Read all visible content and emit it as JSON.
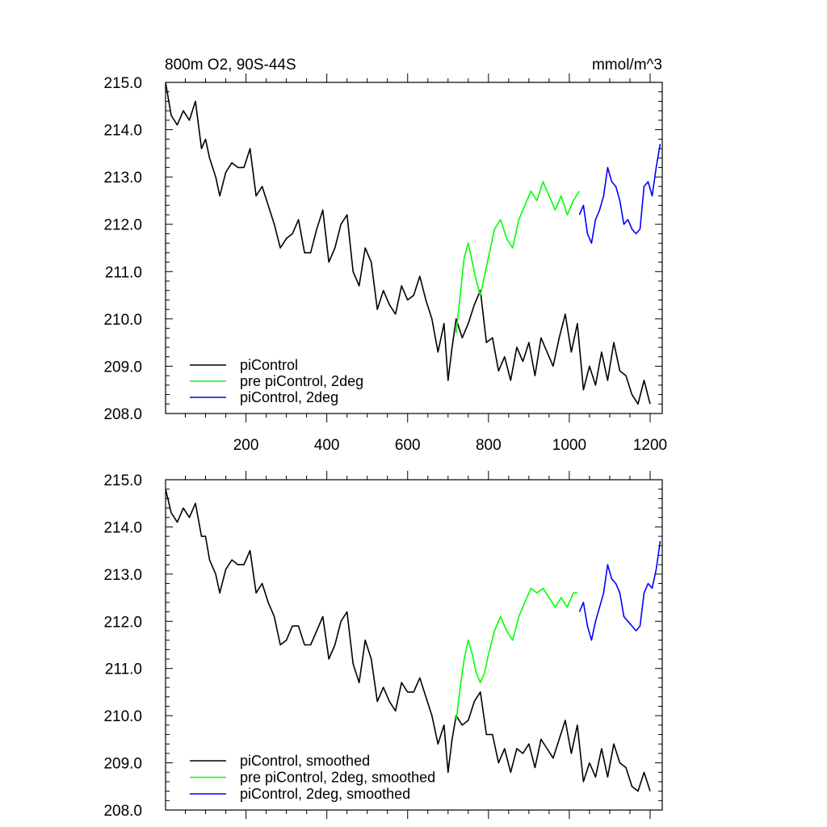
{
  "title_left": "800m O2, 90S-44S",
  "title_right": "mmol/m^3",
  "colors": {
    "black": "#000000",
    "green": "#00ff00",
    "blue": "#0000ff"
  },
  "chart_data": [
    {
      "type": "line",
      "title": "800m O2, 90S-44S",
      "units": "mmol/m^3",
      "xlim": [
        1,
        1230
      ],
      "ylim": [
        208,
        215
      ],
      "xticks": [
        200,
        400,
        600,
        800,
        1000,
        1200
      ],
      "xtick_labels": [
        "200",
        "400",
        "600",
        "800",
        "1000",
        "1200"
      ],
      "yticks": [
        208,
        209,
        210,
        211,
        212,
        213,
        214,
        215
      ],
      "ytick_labels": [
        "208.0",
        "209.0",
        "210.0",
        "211.0",
        "212.0",
        "213.0",
        "214.0",
        "215.0"
      ],
      "legend_position": "bottom-left",
      "series": [
        {
          "name": "piControl",
          "color": "#000000",
          "x": [
            1,
            15,
            30,
            45,
            60,
            75,
            90,
            100,
            110,
            125,
            135,
            150,
            165,
            180,
            195,
            210,
            225,
            240,
            255,
            270,
            285,
            300,
            315,
            330,
            345,
            360,
            375,
            390,
            405,
            420,
            435,
            450,
            465,
            480,
            495,
            510,
            525,
            540,
            555,
            570,
            585,
            600,
            615,
            630,
            645,
            660,
            675,
            690,
            700,
            710,
            720,
            735,
            750,
            765,
            780,
            795,
            810,
            825,
            840,
            855,
            870,
            885,
            900,
            915,
            930,
            945,
            960,
            975,
            990,
            1005,
            1020,
            1035,
            1050,
            1065,
            1080,
            1095,
            1110,
            1125,
            1140,
            1155,
            1170,
            1185,
            1200
          ],
          "y": [
            215.0,
            214.3,
            214.1,
            214.4,
            214.2,
            214.6,
            213.6,
            213.8,
            213.4,
            213.0,
            212.6,
            213.1,
            213.3,
            213.2,
            213.2,
            213.6,
            212.6,
            212.8,
            212.4,
            212.0,
            211.5,
            211.7,
            211.8,
            212.1,
            211.4,
            211.4,
            211.9,
            212.3,
            211.2,
            211.5,
            212.0,
            212.2,
            211.0,
            210.7,
            211.5,
            211.2,
            210.2,
            210.6,
            210.3,
            210.1,
            210.7,
            210.4,
            210.5,
            210.9,
            210.4,
            210.0,
            209.3,
            209.9,
            208.7,
            209.4,
            210.0,
            209.6,
            209.9,
            210.3,
            210.6,
            209.5,
            209.6,
            208.9,
            209.2,
            208.7,
            209.4,
            209.1,
            209.5,
            208.8,
            209.6,
            209.3,
            209.0,
            209.6,
            210.1,
            209.3,
            209.9,
            208.5,
            209.0,
            208.6,
            209.3,
            208.7,
            209.5,
            208.9,
            208.8,
            208.4,
            208.2,
            208.7,
            208.2
          ]
        },
        {
          "name": "pre piControl, 2deg",
          "color": "#00ff00",
          "x": [
            720,
            730,
            740,
            750,
            760,
            770,
            780,
            790,
            800,
            815,
            830,
            845,
            860,
            875,
            890,
            905,
            920,
            935,
            950,
            965,
            980,
            995,
            1010,
            1025
          ],
          "y": [
            209.7,
            210.5,
            211.3,
            211.6,
            211.2,
            210.8,
            210.5,
            210.9,
            211.3,
            211.9,
            212.1,
            211.7,
            211.5,
            212.1,
            212.4,
            212.7,
            212.5,
            212.9,
            212.6,
            212.3,
            212.6,
            212.2,
            212.5,
            212.7
          ]
        },
        {
          "name": "piControl, 2deg",
          "color": "#0000ff",
          "x": [
            1025,
            1035,
            1045,
            1055,
            1065,
            1075,
            1085,
            1095,
            1105,
            1115,
            1125,
            1135,
            1145,
            1155,
            1165,
            1175,
            1185,
            1195,
            1205,
            1215,
            1225
          ],
          "y": [
            212.2,
            212.4,
            211.8,
            211.6,
            212.1,
            212.3,
            212.6,
            213.2,
            212.9,
            212.8,
            212.5,
            212.0,
            212.1,
            211.9,
            211.8,
            211.9,
            212.8,
            212.9,
            212.6,
            213.2,
            213.7
          ]
        }
      ]
    },
    {
      "type": "line",
      "xlim": [
        1,
        1230
      ],
      "ylim": [
        208,
        215
      ],
      "xticks": [
        200,
        400,
        600,
        800,
        1000,
        1200
      ],
      "yticks": [
        208,
        209,
        210,
        211,
        212,
        213,
        214,
        215
      ],
      "ytick_labels": [
        "208.0",
        "209.0",
        "210.0",
        "211.0",
        "212.0",
        "213.0",
        "214.0",
        "215.0"
      ],
      "legend_position": "bottom-left",
      "series": [
        {
          "name": "piControl, smoothed",
          "color": "#000000",
          "x": [
            1,
            15,
            30,
            45,
            60,
            75,
            90,
            100,
            110,
            125,
            135,
            150,
            165,
            180,
            195,
            210,
            225,
            240,
            255,
            270,
            285,
            300,
            315,
            330,
            345,
            360,
            375,
            390,
            405,
            420,
            435,
            450,
            465,
            480,
            495,
            510,
            525,
            540,
            555,
            570,
            585,
            600,
            615,
            630,
            645,
            660,
            675,
            690,
            700,
            710,
            720,
            735,
            750,
            765,
            780,
            795,
            810,
            825,
            840,
            855,
            870,
            885,
            900,
            915,
            930,
            945,
            960,
            975,
            990,
            1005,
            1020,
            1035,
            1050,
            1065,
            1080,
            1095,
            1110,
            1125,
            1140,
            1155,
            1170,
            1185,
            1200
          ],
          "y": [
            214.8,
            214.3,
            214.1,
            214.4,
            214.2,
            214.5,
            213.8,
            213.8,
            213.3,
            213.0,
            212.6,
            213.1,
            213.3,
            213.2,
            213.2,
            213.5,
            212.6,
            212.8,
            212.4,
            212.1,
            211.5,
            211.6,
            211.9,
            211.9,
            211.5,
            211.5,
            211.8,
            212.1,
            211.2,
            211.5,
            212.0,
            212.2,
            211.1,
            210.7,
            211.6,
            211.2,
            210.3,
            210.6,
            210.3,
            210.1,
            210.7,
            210.5,
            210.5,
            210.8,
            210.4,
            210.0,
            209.4,
            209.8,
            208.8,
            209.5,
            210.0,
            209.8,
            209.9,
            210.3,
            210.5,
            209.6,
            209.6,
            209.0,
            209.3,
            208.8,
            209.3,
            209.2,
            209.4,
            208.9,
            209.5,
            209.3,
            209.1,
            209.5,
            209.9,
            209.2,
            209.8,
            208.6,
            209.0,
            208.7,
            209.3,
            208.7,
            209.4,
            209.0,
            208.9,
            208.5,
            208.4,
            208.8,
            208.4
          ]
        },
        {
          "name": "pre piControl, 2deg, smoothed",
          "color": "#00ff00",
          "x": [
            720,
            730,
            740,
            750,
            760,
            770,
            780,
            790,
            800,
            815,
            830,
            845,
            860,
            875,
            890,
            905,
            920,
            935,
            950,
            965,
            980,
            995,
            1010,
            1020
          ],
          "y": [
            209.9,
            210.6,
            211.2,
            211.6,
            211.3,
            210.9,
            210.7,
            210.9,
            211.3,
            211.8,
            212.1,
            211.8,
            211.6,
            212.1,
            212.4,
            212.7,
            212.6,
            212.7,
            212.5,
            212.3,
            212.5,
            212.3,
            212.6,
            212.6
          ]
        },
        {
          "name": "piControl, 2deg, smoothed",
          "color": "#0000ff",
          "x": [
            1025,
            1035,
            1045,
            1055,
            1065,
            1075,
            1085,
            1095,
            1105,
            1115,
            1125,
            1135,
            1145,
            1155,
            1165,
            1175,
            1185,
            1195,
            1205,
            1215,
            1225
          ],
          "y": [
            212.2,
            212.4,
            211.9,
            211.6,
            212.0,
            212.3,
            212.6,
            213.2,
            212.9,
            212.8,
            212.6,
            212.1,
            212.0,
            211.9,
            211.8,
            211.9,
            212.6,
            212.8,
            212.7,
            213.1,
            213.7
          ]
        }
      ]
    }
  ]
}
